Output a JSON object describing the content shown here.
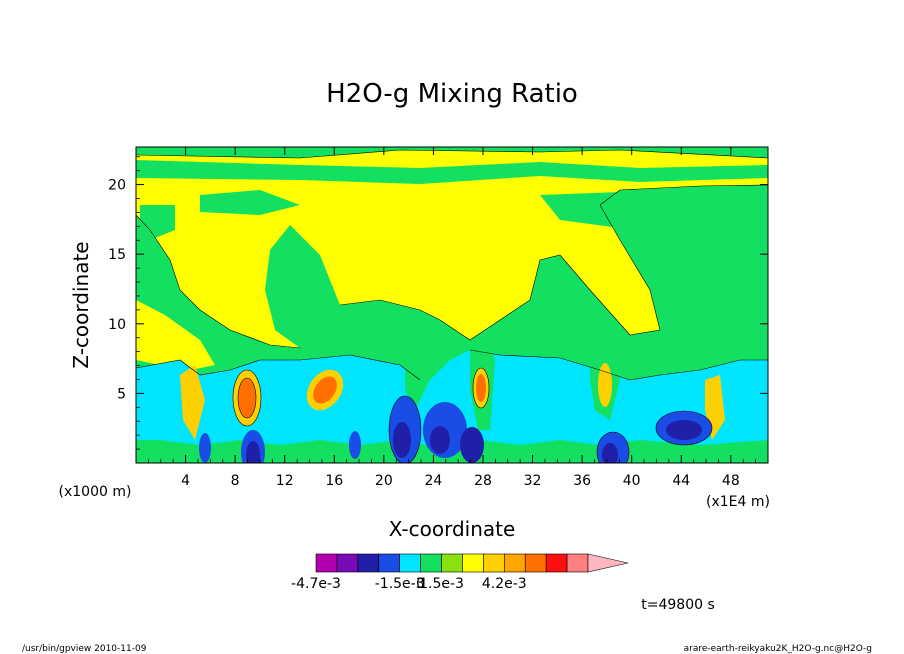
{
  "chart_data": {
    "type": "heatmap",
    "title": "H2O-g Mixing Ratio",
    "xlabel": "X-coordinate",
    "ylabel": "Z-coordinate",
    "x_unit_left": "(x1000 m)",
    "x_unit_right": "(x1E4 m)",
    "xlim": [
      0,
      51
    ],
    "ylim": [
      0,
      22.7
    ],
    "x_ticks": [
      4,
      8,
      12,
      16,
      20,
      24,
      28,
      32,
      36,
      40,
      44,
      48
    ],
    "y_ticks": [
      5,
      10,
      15,
      20
    ],
    "colorbar": {
      "colors": [
        "#b000b0",
        "#7a0ab8",
        "#1f1fa8",
        "#1a4ce6",
        "#00e5ff",
        "#13e060",
        "#89e10f",
        "#ffff00",
        "#ffd000",
        "#ffa500",
        "#ff7000",
        "#ff1010",
        "#ff8080",
        "#ffb6c1"
      ],
      "labels": [
        "-4.7e-3",
        "-1.5e-3",
        "0",
        "1.5e-3",
        "4.2e-3"
      ],
      "label_positions": [
        0,
        4,
        5,
        6,
        9
      ]
    },
    "regions": [
      {
        "color": "#00ffff",
        "x": [
          0,
          51
        ],
        "z": [
          0.3,
          7.5
        ]
      },
      {
        "color": "#1a4ce6",
        "x": [
          8.5,
          10.5
        ],
        "z": [
          0,
          2.5
        ]
      },
      {
        "color": "#1f1fa8",
        "x": [
          20.5,
          26
        ],
        "z": [
          0,
          4.5
        ]
      },
      {
        "color": "#1a4ce6",
        "x": [
          36.5,
          39.5
        ],
        "z": [
          0,
          2.5
        ]
      },
      {
        "color": "#1f1fa8",
        "x": [
          42,
          46
        ],
        "z": [
          1.5,
          3.5
        ]
      },
      {
        "color": "#ffa500",
        "x": [
          8,
          10
        ],
        "z": [
          3,
          7
        ]
      },
      {
        "color": "#ffa500",
        "x": [
          14,
          16.5
        ],
        "z": [
          3,
          6.5
        ]
      },
      {
        "color": "#ffa500",
        "x": [
          27,
          28.5
        ],
        "z": [
          3,
          6.5
        ]
      }
    ]
  },
  "annotation_time": "t=49800 s",
  "footer": {
    "left": "/usr/bin/gpview  2010-11-09",
    "right": "arare-earth-reikyaku2K_H2O-g.nc@H2O-g"
  }
}
